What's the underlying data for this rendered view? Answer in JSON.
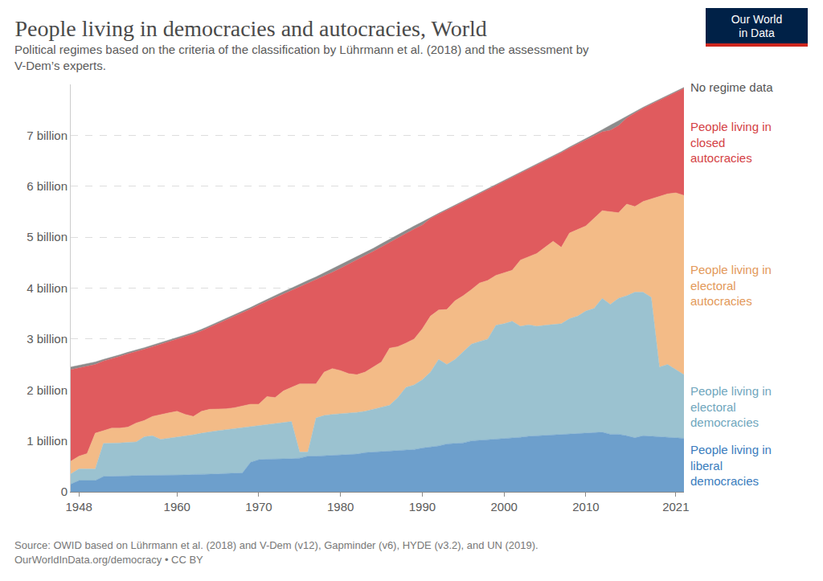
{
  "chart_data": {
    "type": "area",
    "stacked": true,
    "grid": true,
    "title": "People living in democracies and autocracies, World",
    "subtitle": [
      "Political regimes based on the criteria of the classification by Lührmann et al. (2018) and the assessment by",
      "V-Dem’s experts."
    ],
    "source": [
      "Source: OWID based on Lührmann et al. (2018) and V-Dem (v12), Gapminder (v6), HYDE (v3.2), and UN (2019).",
      "OurWorldInData.org/democracy • CC BY"
    ],
    "logo": [
      "Our World",
      "in Data"
    ],
    "x": [
      1947,
      1948,
      1949,
      1950,
      1951,
      1952,
      1953,
      1954,
      1955,
      1956,
      1957,
      1958,
      1959,
      1960,
      1961,
      1962,
      1963,
      1964,
      1965,
      1966,
      1967,
      1968,
      1969,
      1970,
      1971,
      1972,
      1973,
      1974,
      1975,
      1976,
      1977,
      1978,
      1979,
      1980,
      1981,
      1982,
      1983,
      1984,
      1985,
      1986,
      1987,
      1988,
      1989,
      1990,
      1991,
      1992,
      1993,
      1994,
      1995,
      1996,
      1997,
      1998,
      1999,
      2000,
      2001,
      2002,
      2003,
      2004,
      2005,
      2006,
      2007,
      2008,
      2009,
      2010,
      2011,
      2012,
      2013,
      2014,
      2015,
      2016,
      2017,
      2018,
      2019,
      2020,
      2021,
      2022
    ],
    "xlim": [
      1947,
      2022
    ],
    "xticks": [
      1948,
      1960,
      1970,
      1980,
      1990,
      2000,
      2010,
      2021
    ],
    "ylim": [
      0,
      8
    ],
    "yticks": [
      0,
      {
        "value": 1,
        "label": "1 billion"
      },
      {
        "value": 2,
        "label": "2 billion"
      },
      {
        "value": 3,
        "label": "3 billion"
      },
      {
        "value": 4,
        "label": "4 billion"
      },
      {
        "value": 5,
        "label": "5 billion"
      },
      {
        "value": 6,
        "label": "6 billion"
      },
      {
        "value": 7,
        "label": "7 billion"
      }
    ],
    "series": [
      {
        "name": "People living in liberal democracies",
        "color": "#6d9fcc",
        "values": [
          0.15,
          0.22,
          0.22,
          0.22,
          0.3,
          0.3,
          0.31,
          0.31,
          0.32,
          0.32,
          0.32,
          0.32,
          0.33,
          0.33,
          0.33,
          0.34,
          0.34,
          0.35,
          0.35,
          0.36,
          0.36,
          0.37,
          0.58,
          0.63,
          0.64,
          0.64,
          0.65,
          0.65,
          0.66,
          0.7,
          0.7,
          0.71,
          0.71,
          0.72,
          0.73,
          0.74,
          0.77,
          0.78,
          0.79,
          0.8,
          0.81,
          0.82,
          0.83,
          0.86,
          0.88,
          0.9,
          0.94,
          0.95,
          0.96,
          1.0,
          1.01,
          1.02,
          1.04,
          1.05,
          1.06,
          1.07,
          1.09,
          1.1,
          1.1,
          1.12,
          1.13,
          1.14,
          1.15,
          1.15,
          1.16,
          1.17,
          1.13,
          1.13,
          1.1,
          1.06,
          1.1,
          1.09,
          1.09,
          1.08,
          1.07,
          1.05
        ]
      },
      {
        "name": "People living in electoral democracies",
        "color": "#9bc2d0",
        "values": [
          0.2,
          0.23,
          0.23,
          0.23,
          0.65,
          0.65,
          0.65,
          0.66,
          0.66,
          0.76,
          0.78,
          0.71,
          0.72,
          0.74,
          0.77,
          0.78,
          0.81,
          0.83,
          0.85,
          0.86,
          0.88,
          0.88,
          0.7,
          0.67,
          0.68,
          0.7,
          0.71,
          0.73,
          0.12,
          0.08,
          0.75,
          0.79,
          0.81,
          0.81,
          0.82,
          0.82,
          0.81,
          0.84,
          0.86,
          0.9,
          1.04,
          1.23,
          1.27,
          1.34,
          1.47,
          1.7,
          1.56,
          1.65,
          1.79,
          1.9,
          1.94,
          1.98,
          2.23,
          2.25,
          2.29,
          2.18,
          2.19,
          2.15,
          2.17,
          2.16,
          2.17,
          2.26,
          2.3,
          2.4,
          2.44,
          2.63,
          2.55,
          2.67,
          2.75,
          2.86,
          2.82,
          2.73,
          1.36,
          1.42,
          1.33,
          1.25
        ]
      },
      {
        "name": "People living in electoral autocracies",
        "color": "#f3bb87",
        "values": [
          0.25,
          0.25,
          0.3,
          0.7,
          0.25,
          0.3,
          0.29,
          0.3,
          0.37,
          0.32,
          0.38,
          0.49,
          0.5,
          0.51,
          0.42,
          0.36,
          0.43,
          0.44,
          0.42,
          0.41,
          0.41,
          0.43,
          0.44,
          0.42,
          0.55,
          0.51,
          0.62,
          0.67,
          1.34,
          1.34,
          0.67,
          0.85,
          0.9,
          0.85,
          0.77,
          0.74,
          0.77,
          0.83,
          0.9,
          1.12,
          1.0,
          0.87,
          0.9,
          1.0,
          1.1,
          0.97,
          1.08,
          1.15,
          1.1,
          1.07,
          1.15,
          1.15,
          0.98,
          1.0,
          1.0,
          1.3,
          1.34,
          1.43,
          1.53,
          1.64,
          1.5,
          1.68,
          1.7,
          1.67,
          1.77,
          1.72,
          1.82,
          1.68,
          1.8,
          1.68,
          1.78,
          1.93,
          3.35,
          3.35,
          3.47,
          3.52
        ]
      },
      {
        "name": "People living in closed autocracies",
        "color": "#e05b5e",
        "values": [
          1.8,
          1.73,
          1.72,
          1.35,
          1.37,
          1.36,
          1.41,
          1.44,
          1.4,
          1.4,
          1.37,
          1.38,
          1.39,
          1.41,
          1.52,
          1.62,
          1.58,
          1.61,
          1.68,
          1.74,
          1.79,
          1.83,
          1.87,
          1.95,
          1.87,
          1.96,
          1.91,
          1.91,
          1.9,
          1.97,
          2.04,
          1.89,
          1.89,
          2.01,
          2.15,
          2.25,
          2.29,
          2.27,
          2.26,
          2.08,
          2.14,
          2.15,
          2.16,
          2.04,
          1.92,
          1.88,
          1.95,
          1.86,
          1.84,
          1.8,
          1.75,
          1.78,
          1.76,
          1.79,
          1.82,
          1.7,
          1.71,
          1.73,
          1.69,
          1.66,
          1.86,
          1.67,
          1.68,
          1.7,
          1.63,
          1.55,
          1.6,
          1.71,
          1.69,
          1.84,
          1.83,
          1.86,
          1.89,
          1.92,
          1.97,
          2.1
        ]
      },
      {
        "name": "No regime data",
        "color": "#8c8c8c",
        "values": [
          0.05,
          0.05,
          0.05,
          0.05,
          0.03,
          0.03,
          0.03,
          0.03,
          0.03,
          0.03,
          0.03,
          0.03,
          0.03,
          0.03,
          0.03,
          0.03,
          0.03,
          0.03,
          0.03,
          0.03,
          0.03,
          0.03,
          0.03,
          0.03,
          0.04,
          0.04,
          0.04,
          0.04,
          0.06,
          0.06,
          0.06,
          0.06,
          0.06,
          0.06,
          0.06,
          0.06,
          0.06,
          0.06,
          0.06,
          0.06,
          0.06,
          0.06,
          0.06,
          0.06,
          0.02,
          0.02,
          0.02,
          0.02,
          0.02,
          0.02,
          0.02,
          0.02,
          0.02,
          0.02,
          0.02,
          0.02,
          0.02,
          0.02,
          0.02,
          0.02,
          0.02,
          0.02,
          0.02,
          0.02,
          0.02,
          0.04,
          0.1,
          0.1,
          0.04,
          0.02,
          0.02,
          0.02,
          0.02,
          0.02,
          0.02,
          0.02
        ]
      }
    ]
  }
}
